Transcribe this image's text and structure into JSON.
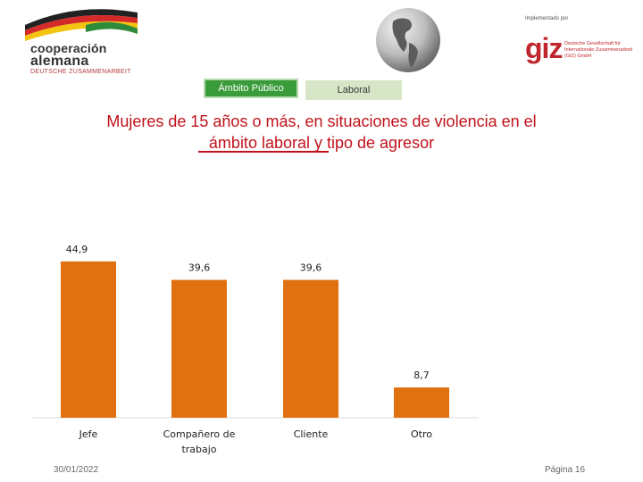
{
  "header": {
    "logo_line1": "cooperación",
    "logo_line2": "alemana",
    "logo_line3": "DEUTSCHE ZUSAMMENARBEIT",
    "impl_label": "Implementado por",
    "giz_word": "giz",
    "giz_sub": "Deutsche Gesellschaft für Internationale Zusammenarbeit (GIZ) GmbH"
  },
  "tabs": [
    {
      "label": "Ámbito Público"
    },
    {
      "label": "Laboral"
    }
  ],
  "title": {
    "line1": "Mujeres de 15 años o más, en situaciones de violencia en el",
    "line2_underlined": "ámbito laboral ",
    "line2_rest": "y tipo de agresor"
  },
  "chart_data": {
    "type": "bar",
    "categories": [
      "Jefe",
      "Compañero de trabajo",
      "Cliente",
      "Otro"
    ],
    "category_lines": [
      [
        "Jefe"
      ],
      [
        "Compañero de",
        "trabajo"
      ],
      [
        "Cliente"
      ],
      [
        "Otro"
      ]
    ],
    "values": [
      44.9,
      39.6,
      39.6,
      8.7
    ],
    "data_labels": [
      "44,9",
      "39,6",
      "39,6",
      "8,7"
    ],
    "ylim": [
      0,
      50
    ],
    "color": "#e07010",
    "grid": false,
    "legend": "none"
  },
  "footer": {
    "date": "30/01/2022",
    "page": "Página 16"
  }
}
